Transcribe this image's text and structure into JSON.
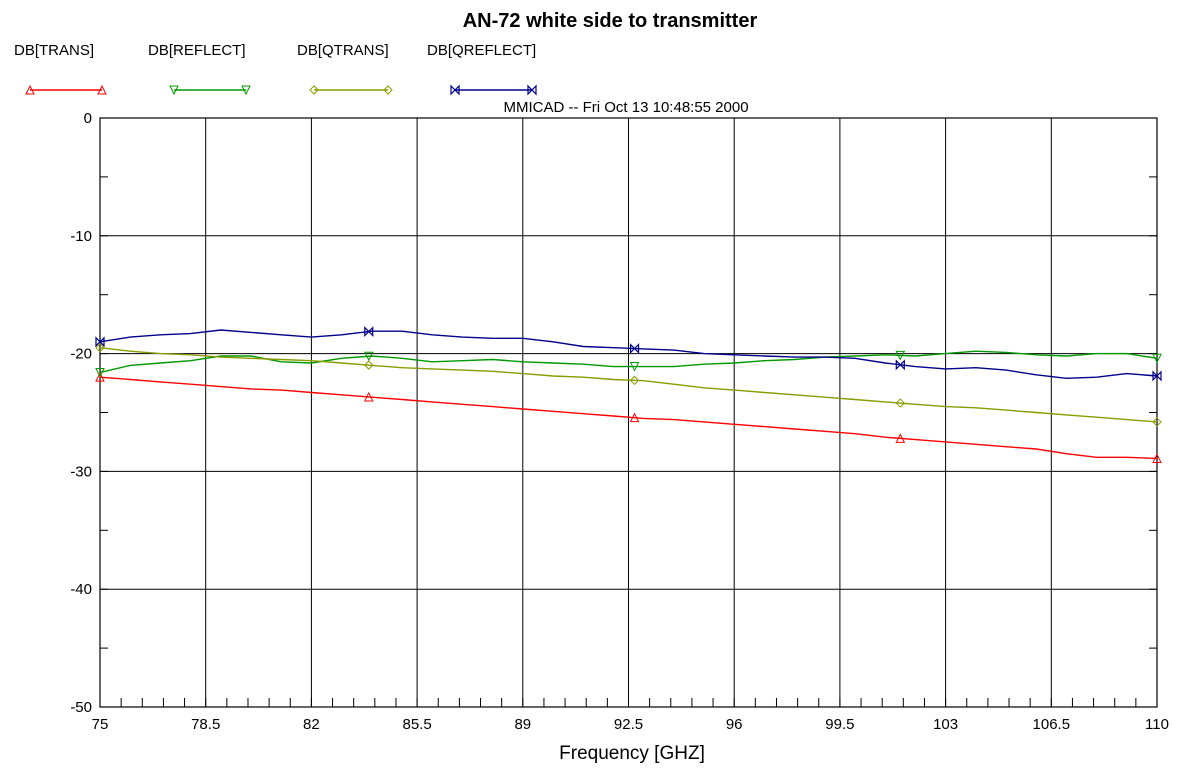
{
  "chart_data": {
    "type": "line",
    "title": "AN-72 white side to transmitter",
    "subtitle": "MMICAD -- Fri Oct 13 10:48:55 2000",
    "xlabel": "Frequency [GHZ]",
    "ylabel": "",
    "xlim": [
      75,
      110
    ],
    "ylim": [
      -50,
      0
    ],
    "x_ticks": [
      "75",
      "78.5",
      "82",
      "85.5",
      "89",
      "92.5",
      "96",
      "99.5",
      "103",
      "106.5",
      "110"
    ],
    "y_ticks": [
      "0",
      "-10",
      "-20",
      "-30",
      "-40",
      "-50"
    ],
    "grid": true,
    "legend_placement": "top-left",
    "x": [
      75,
      76,
      77,
      78,
      79,
      80,
      81,
      82,
      83,
      84,
      85,
      86,
      87,
      88,
      89,
      90,
      91,
      92,
      93,
      94,
      95,
      96,
      97,
      98,
      99,
      100,
      101,
      102,
      103,
      104,
      105,
      106,
      107,
      108,
      109,
      110
    ],
    "marker_x": [
      75,
      83.9,
      92.7,
      101.5,
      110
    ],
    "series": [
      {
        "name": "DB[TRANS]",
        "color": "#ff0000",
        "marker": "triangle-up",
        "values": [
          -22.0,
          -22.2,
          -22.4,
          -22.6,
          -22.8,
          -23.0,
          -23.1,
          -23.3,
          -23.5,
          -23.7,
          -23.9,
          -24.1,
          -24.3,
          -24.5,
          -24.7,
          -24.9,
          -25.1,
          -25.3,
          -25.5,
          -25.6,
          -25.8,
          -26.0,
          -26.2,
          -26.4,
          -26.6,
          -26.8,
          -27.1,
          -27.3,
          -27.5,
          -27.7,
          -27.9,
          -28.1,
          -28.5,
          -28.8,
          -28.8,
          -28.9
        ]
      },
      {
        "name": "DB[REFLECT]",
        "color": "#009900",
        "marker": "triangle-down",
        "values": [
          -21.6,
          -21.0,
          -20.8,
          -20.6,
          -20.2,
          -20.2,
          -20.7,
          -20.8,
          -20.4,
          -20.2,
          -20.4,
          -20.7,
          -20.6,
          -20.5,
          -20.7,
          -20.8,
          -20.9,
          -21.1,
          -21.1,
          -21.1,
          -20.9,
          -20.8,
          -20.6,
          -20.5,
          -20.3,
          -20.2,
          -20.1,
          -20.2,
          -20.0,
          -19.8,
          -19.9,
          -20.1,
          -20.2,
          -20.0,
          -20.0,
          -20.4
        ]
      },
      {
        "name": "DB[QTRANS]",
        "color": "#8b9a00",
        "marker": "diamond",
        "values": [
          -19.5,
          -19.8,
          -20.0,
          -20.1,
          -20.3,
          -20.4,
          -20.5,
          -20.6,
          -20.8,
          -21.0,
          -21.2,
          -21.3,
          -21.4,
          -21.5,
          -21.7,
          -21.9,
          -22.0,
          -22.2,
          -22.3,
          -22.6,
          -22.9,
          -23.1,
          -23.3,
          -23.5,
          -23.7,
          -23.9,
          -24.1,
          -24.3,
          -24.5,
          -24.6,
          -24.8,
          -25.0,
          -25.2,
          -25.4,
          -25.6,
          -25.8
        ]
      },
      {
        "name": "DB[QREFLECT]",
        "color": "#00008b",
        "marker": "bowtie",
        "values": [
          -19.0,
          -18.6,
          -18.4,
          -18.3,
          -18.0,
          -18.2,
          -18.4,
          -18.6,
          -18.4,
          -18.1,
          -18.1,
          -18.4,
          -18.6,
          -18.7,
          -18.7,
          -19.0,
          -19.4,
          -19.5,
          -19.6,
          -19.7,
          -20.0,
          -20.1,
          -20.2,
          -20.3,
          -20.3,
          -20.4,
          -20.8,
          -21.1,
          -21.3,
          -21.2,
          -21.4,
          -21.8,
          -22.1,
          -22.0,
          -21.7,
          -21.9
        ]
      }
    ]
  }
}
